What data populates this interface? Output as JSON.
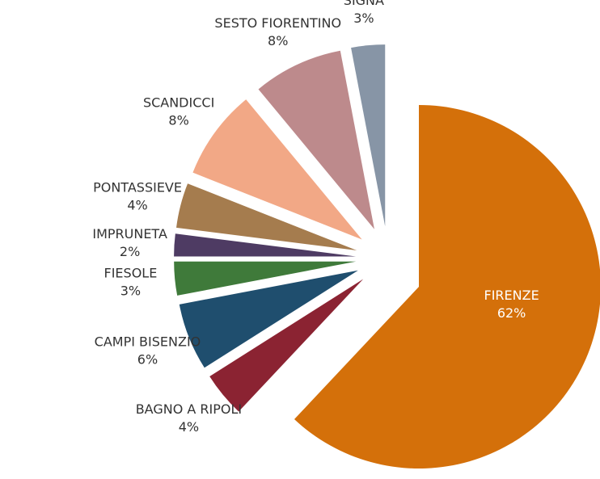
{
  "chart_data": {
    "type": "pie",
    "categories": [
      "FIRENZE",
      "BAGNO A RIPOLI",
      "CAMPI BISENZIO",
      "FIESOLE",
      "IMPRUNETA",
      "PONTASSIEVE",
      "SCANDICCI",
      "SESTO FIORENTINO",
      "SIGNA"
    ],
    "values": [
      62,
      4,
      6,
      3,
      2,
      4,
      8,
      8,
      3
    ],
    "value_labels": [
      "62%",
      "4%",
      "6%",
      "3%",
      "2%",
      "4%",
      "8%",
      "8%",
      "3%"
    ],
    "colors": [
      "#d4700a",
      "#8b2332",
      "#1f4e6e",
      "#3f7a3a",
      "#4e3b63",
      "#a57c4e",
      "#f2a886",
      "#bd8a8c",
      "#8795a6"
    ]
  }
}
